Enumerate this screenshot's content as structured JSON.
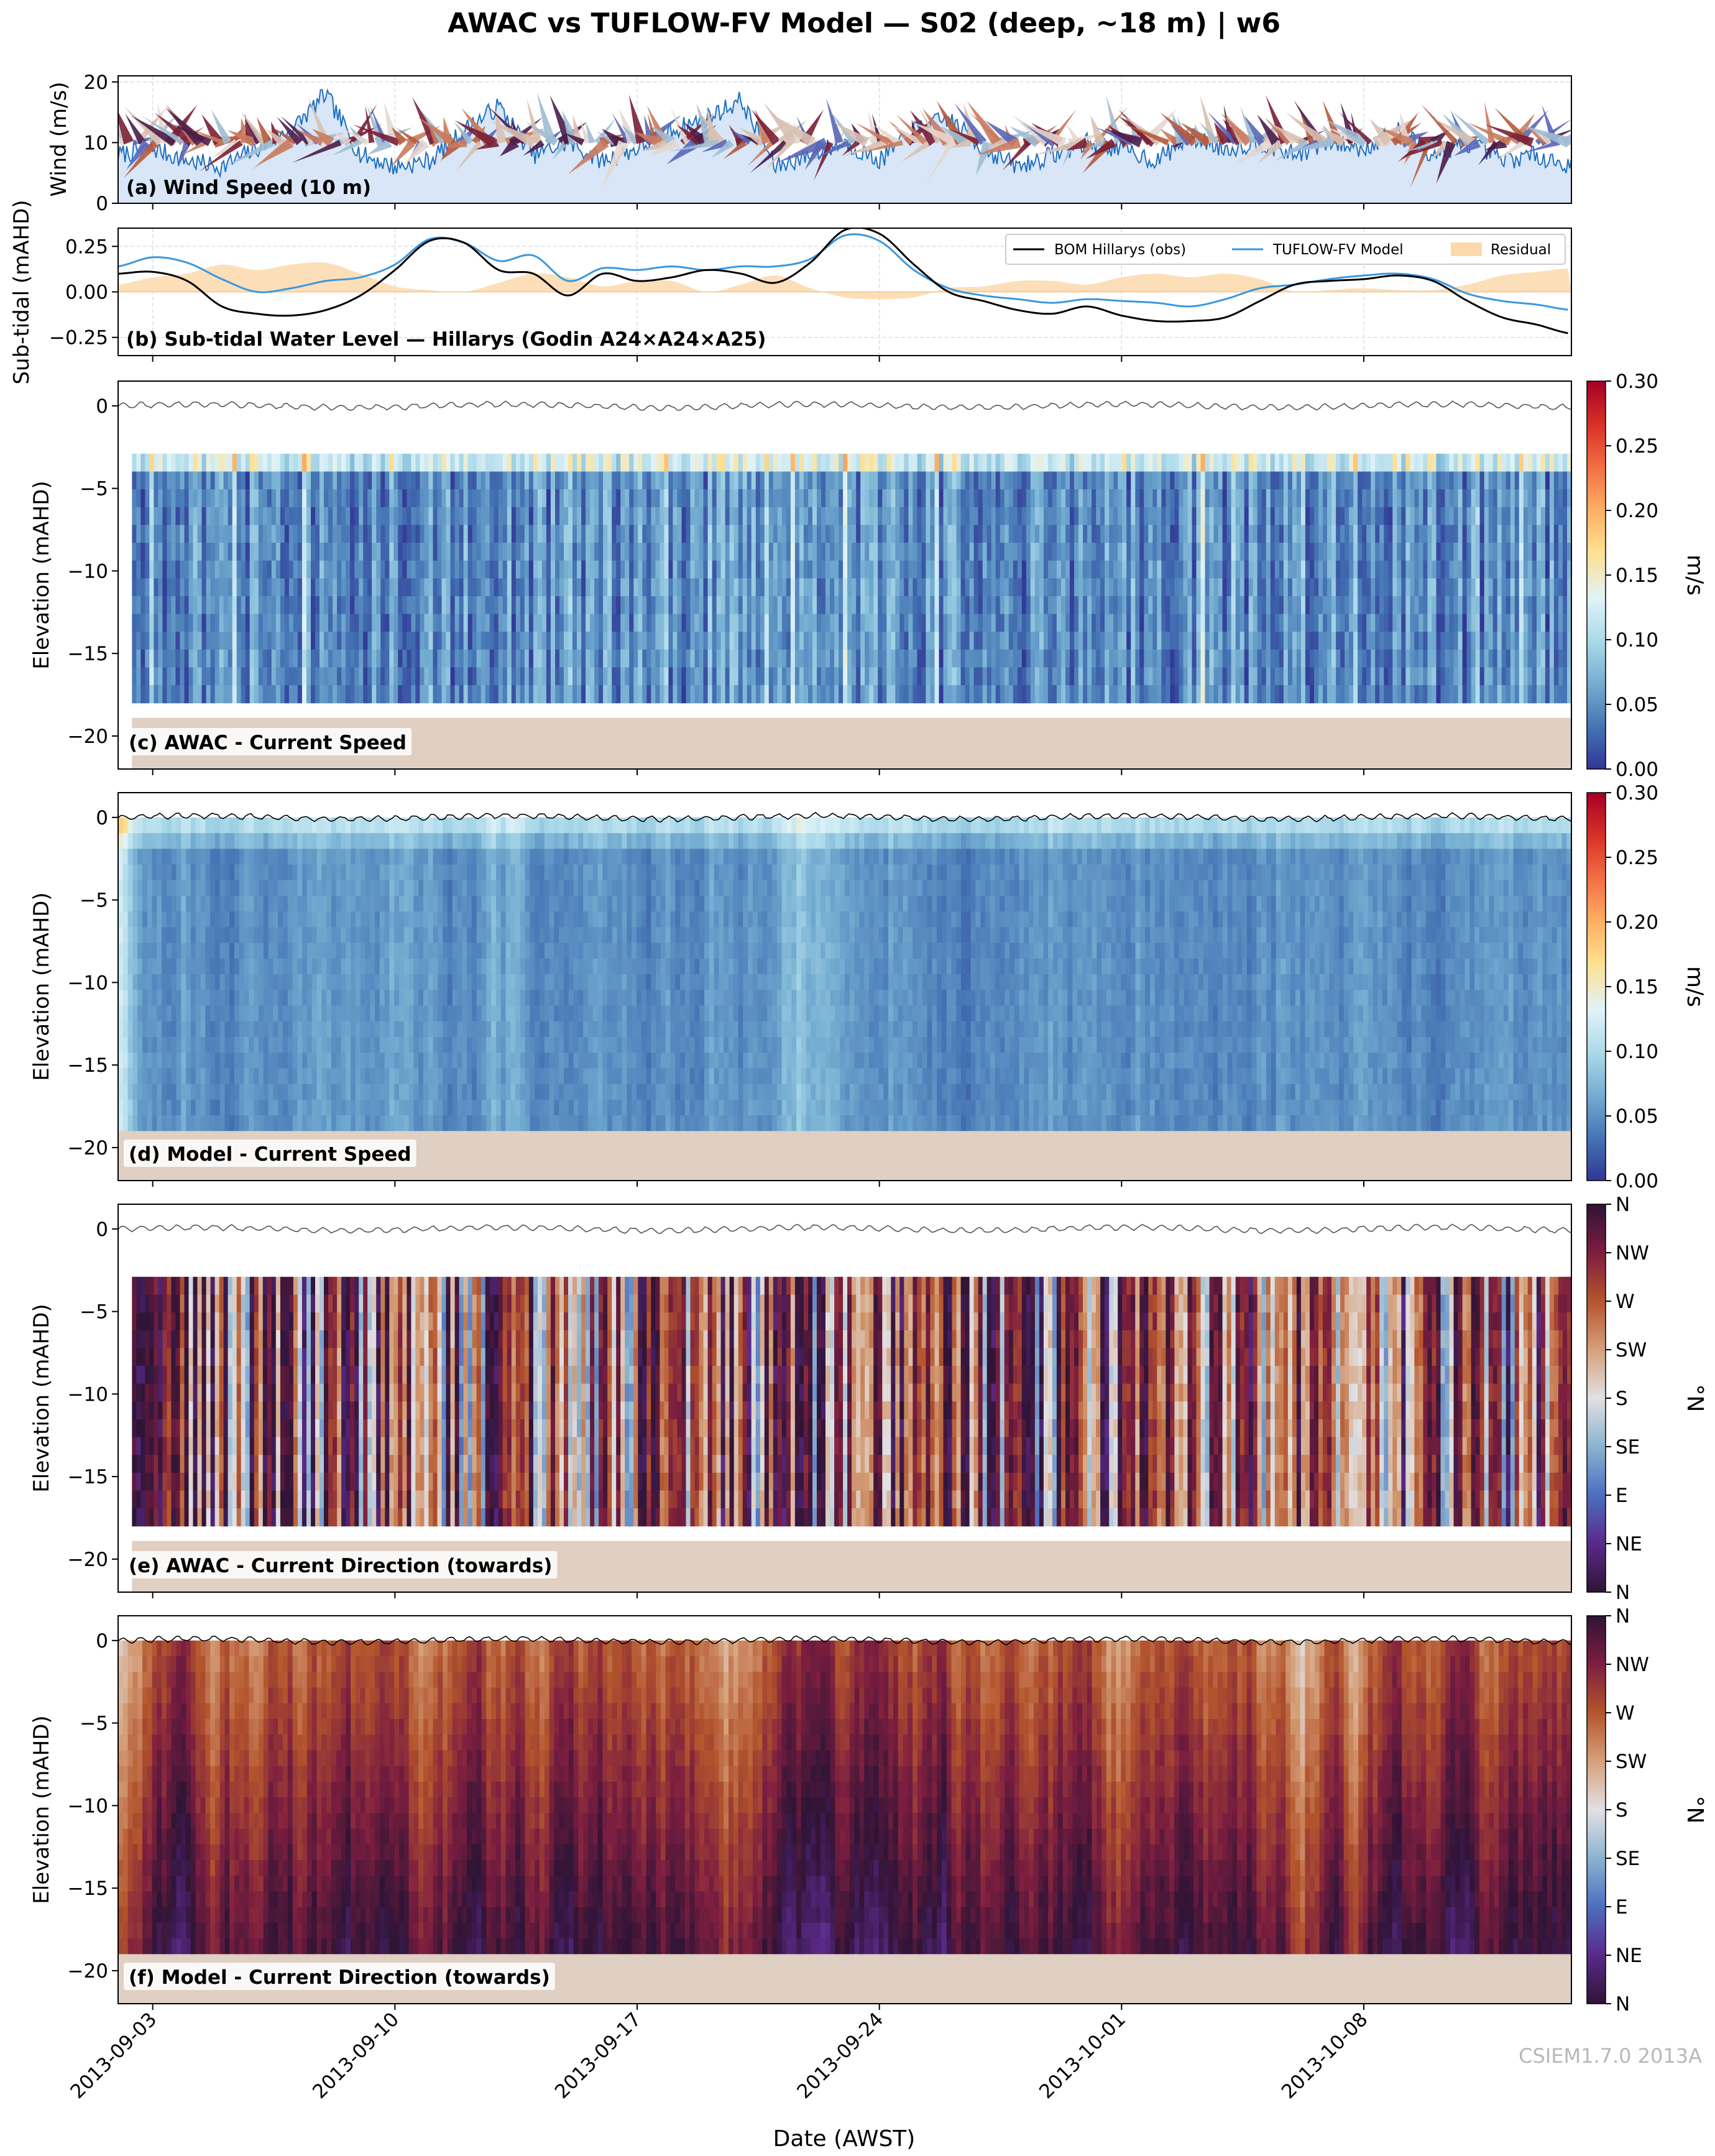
{
  "figure": {
    "title": "AWAC vs TUFLOW-FV Model — S02 (deep, ~18 m) | w6",
    "xlabel": "Date (AWST)",
    "watermark": "CSIEM1.7.0 2013A",
    "x_tick_labels": [
      "2013-09-03",
      "2013-09-10",
      "2013-09-17",
      "2013-09-24",
      "2013-10-01",
      "2013-10-08"
    ],
    "x_range": [
      "2013-09-02",
      "2013-10-14"
    ]
  },
  "chart_data": [
    {
      "id": "a",
      "type": "area",
      "title": "(a) Wind Speed (10 m)",
      "ylabel": "Wind (m/s)",
      "ylim": [
        0,
        21
      ],
      "yticks": [
        "0",
        "10",
        "20"
      ],
      "grid": true,
      "series": [
        {
          "name": "",
          "x_start": "2013-09-02",
          "step_days": 1,
          "values": [
            8,
            9,
            7,
            6,
            9,
            12,
            18,
            8,
            6,
            7,
            12,
            16,
            8,
            10,
            7,
            9,
            12,
            14,
            17,
            6,
            8,
            10,
            7,
            12,
            14,
            9,
            6,
            8,
            10,
            9,
            7,
            11,
            9,
            10,
            8,
            10,
            9,
            12,
            8,
            10,
            7,
            8,
            6
          ]
        }
      ],
      "annotations": [
        "wind-direction arrows plotted along y = 10 m/s"
      ]
    },
    {
      "id": "b",
      "type": "line",
      "title": "(b) Sub-tidal Water Level — Hillarys (Godin A24×A24×A25)",
      "ylabel": "Sub-tidal (mAHD)",
      "ylim": [
        -0.35,
        0.35
      ],
      "yticks": [
        "0.25",
        "0.00",
        "−0.25"
      ],
      "legend_position": "top-right",
      "grid": true,
      "x_start": "2013-09-02",
      "step_days": 1,
      "series": [
        {
          "name": "BOM Hillarys (obs)",
          "values": [
            0.1,
            0.11,
            0.06,
            -0.08,
            -0.12,
            -0.13,
            -0.1,
            -0.02,
            0.12,
            0.28,
            0.27,
            0.12,
            0.1,
            -0.02,
            0.1,
            0.06,
            0.08,
            0.12,
            0.1,
            0.05,
            0.16,
            0.34,
            0.32,
            0.15,
            0.0,
            -0.05,
            -0.1,
            -0.12,
            -0.08,
            -0.13,
            -0.16,
            -0.16,
            -0.14,
            -0.05,
            0.04,
            0.06,
            0.07,
            0.09,
            0.06,
            -0.05,
            -0.14,
            -0.18,
            -0.23
          ]
        },
        {
          "name": "TUFLOW-FV Model",
          "values": [
            0.14,
            0.19,
            0.16,
            0.07,
            0.0,
            0.02,
            0.06,
            0.08,
            0.15,
            0.29,
            0.27,
            0.17,
            0.2,
            0.06,
            0.13,
            0.12,
            0.14,
            0.12,
            0.14,
            0.14,
            0.18,
            0.31,
            0.28,
            0.12,
            0.02,
            -0.02,
            -0.04,
            -0.06,
            -0.04,
            -0.05,
            -0.06,
            -0.08,
            -0.04,
            0.02,
            0.04,
            0.07,
            0.09,
            0.1,
            0.07,
            -0.01,
            -0.05,
            -0.07,
            -0.1
          ]
        },
        {
          "name": "Residual",
          "values": [
            0.04,
            0.08,
            0.1,
            0.15,
            0.12,
            0.15,
            0.16,
            0.1,
            0.03,
            0.01,
            0.0,
            0.05,
            0.1,
            0.08,
            0.03,
            0.06,
            0.06,
            0.0,
            0.04,
            0.09,
            0.02,
            -0.03,
            -0.04,
            -0.03,
            0.02,
            0.03,
            0.06,
            0.06,
            0.04,
            0.08,
            0.1,
            0.08,
            0.1,
            0.07,
            0.0,
            0.01,
            0.02,
            0.01,
            0.01,
            0.04,
            0.09,
            0.11,
            0.13
          ]
        }
      ]
    },
    {
      "id": "c",
      "type": "heatmap",
      "title": "(c) AWAC - Current Speed",
      "ylabel": "Elevation (mAHD)",
      "ylim": [
        -22,
        1.5
      ],
      "yticks": [
        "0",
        "−5",
        "−10",
        "−15",
        "−20"
      ],
      "data_z_range": [
        -18,
        -2.9
      ],
      "bed_level": -18.9,
      "colorbar": {
        "label": "m/s",
        "range": [
          0,
          0.3
        ],
        "ticks": [
          "0.30",
          "0.25",
          "0.20",
          "0.15",
          "0.10",
          "0.05",
          "0.00"
        ]
      }
    },
    {
      "id": "d",
      "type": "heatmap",
      "title": "(d) Model - Current Speed",
      "ylabel": "Elevation (mAHD)",
      "ylim": [
        -22,
        1.5
      ],
      "yticks": [
        "0",
        "−5",
        "−10",
        "−15",
        "−20"
      ],
      "data_z_range": [
        -19,
        0
      ],
      "bed_level": -19,
      "colorbar": {
        "label": "m/s",
        "range": [
          0,
          0.3
        ],
        "ticks": [
          "0.30",
          "0.25",
          "0.20",
          "0.15",
          "0.10",
          "0.05",
          "0.00"
        ]
      }
    },
    {
      "id": "e",
      "type": "heatmap",
      "title": "(e) AWAC - Current Direction (towards)",
      "ylabel": "Elevation (mAHD)",
      "ylim": [
        -22,
        1.5
      ],
      "yticks": [
        "0",
        "−5",
        "−10",
        "−15",
        "−20"
      ],
      "data_z_range": [
        -18,
        -2.9
      ],
      "bed_level": -18.9,
      "colorbar": {
        "label": "°N",
        "range": [
          0,
          360
        ],
        "ticks": [
          "N",
          "NW",
          "W",
          "SW",
          "S",
          "SE",
          "E",
          "NE",
          "N"
        ]
      }
    },
    {
      "id": "f",
      "type": "heatmap",
      "title": "(f) Model - Current Direction (towards)",
      "ylabel": "Elevation (mAHD)",
      "ylim": [
        -22,
        1.5
      ],
      "yticks": [
        "0",
        "−5",
        "−10",
        "−15",
        "−20"
      ],
      "data_z_range": [
        -19,
        0
      ],
      "bed_level": -19,
      "colorbar": {
        "label": "°N",
        "range": [
          0,
          360
        ],
        "ticks": [
          "N",
          "NW",
          "W",
          "SW",
          "S",
          "SE",
          "E",
          "NE",
          "N"
        ]
      }
    }
  ],
  "colors": {
    "wind_fill": "#d8e6f7",
    "wind_line": "#1f6fc0",
    "obs_line": "#000000",
    "model_line": "#3b97e0",
    "residual_fill": "#fcd9ab",
    "bed": "#dfd0c3",
    "speed_cmap": [
      "#313695",
      "#4575b4",
      "#74add1",
      "#abd9e9",
      "#e0f3f8",
      "#fee090",
      "#fdae61",
      "#f46d43",
      "#d73027",
      "#a50026"
    ],
    "direction_cmap": [
      "#2f1436",
      "#5a2a8a",
      "#4d6ec0",
      "#8bb3cf",
      "#e2e0e3",
      "#d5a07a",
      "#b4552d",
      "#7d1e3f",
      "#2f1436"
    ]
  }
}
